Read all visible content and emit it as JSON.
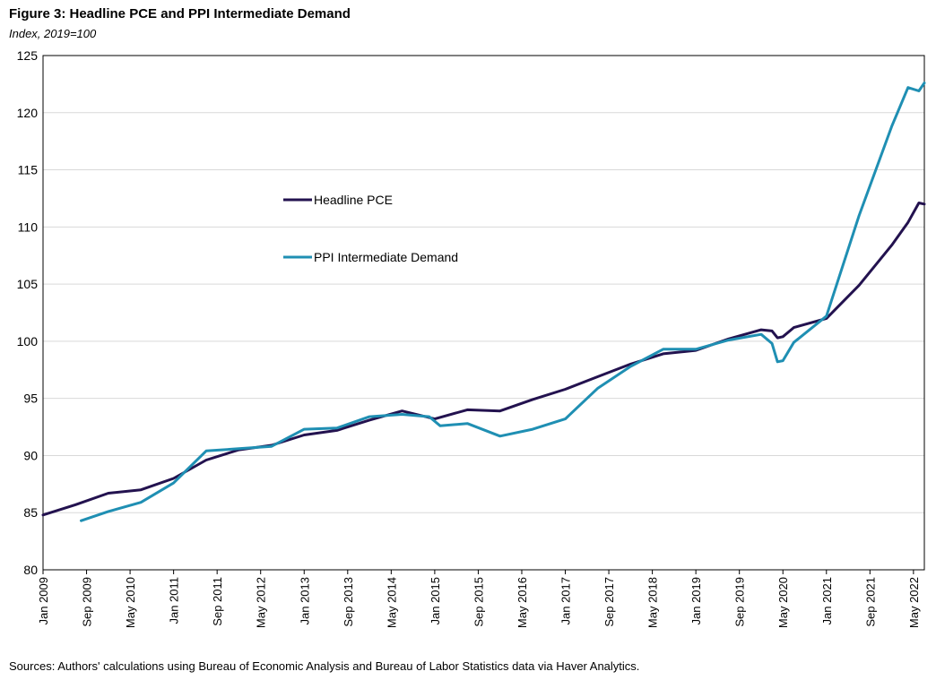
{
  "title": "Figure 3: Headline PCE and PPI Intermediate Demand",
  "subtitle": "Index, 2019=100",
  "source": "Sources: Authors' calculations using Bureau of Economic Analysis and Bureau of Labor Statistics data via Haver Analytics.",
  "chart_data": {
    "type": "line",
    "x_unit": "month",
    "x_start": "Jan 2009",
    "x_end": "Jul 2022",
    "ylim": [
      80,
      125
    ],
    "yticks": [
      80,
      85,
      90,
      95,
      100,
      105,
      110,
      115,
      120,
      125
    ],
    "xticks": [
      "Jan 2009",
      "Sep 2009",
      "May 2010",
      "Jan 2011",
      "Sep 2011",
      "May 2012",
      "Jan 2013",
      "Sep 2013",
      "May 2014",
      "Jan 2015",
      "Sep 2015",
      "May 2016",
      "Jan 2017",
      "Sep 2017",
      "May 2018",
      "Jan 2019",
      "Sep 2019",
      "May 2020",
      "Jan 2021",
      "Sep 2021",
      "May 2022"
    ],
    "grid": "horizontal",
    "legend_placement": "center-left",
    "series": [
      {
        "name": "Headline PCE",
        "color": "#23124f",
        "points": [
          [
            "Jan 2009",
            84.8
          ],
          [
            "Jul 2009",
            85.7
          ],
          [
            "Jan 2010",
            86.7
          ],
          [
            "Jul 2010",
            87.0
          ],
          [
            "Jan 2011",
            88.0
          ],
          [
            "Jul 2011",
            89.6
          ],
          [
            "Jan 2012",
            90.5
          ],
          [
            "Jul 2012",
            90.9
          ],
          [
            "Jan 2013",
            91.8
          ],
          [
            "Jul 2013",
            92.2
          ],
          [
            "Jan 2014",
            93.1
          ],
          [
            "Jul 2014",
            93.9
          ],
          [
            "Jan 2015",
            93.2
          ],
          [
            "Jul 2015",
            94.0
          ],
          [
            "Jan 2016",
            93.9
          ],
          [
            "Jul 2016",
            94.9
          ],
          [
            "Jan 2017",
            95.8
          ],
          [
            "Jul 2017",
            96.9
          ],
          [
            "Jan 2018",
            98.0
          ],
          [
            "Jul 2018",
            98.9
          ],
          [
            "Jan 2019",
            99.2
          ],
          [
            "Jul 2019",
            100.2
          ],
          [
            "Jan 2020",
            101.0
          ],
          [
            "Mar 2020",
            100.9
          ],
          [
            "Apr 2020",
            100.3
          ],
          [
            "May 2020",
            100.4
          ],
          [
            "Jul 2020",
            101.2
          ],
          [
            "Jan 2021",
            102.0
          ],
          [
            "Jul 2021",
            104.9
          ],
          [
            "Jan 2022",
            108.4
          ],
          [
            "Apr 2022",
            110.4
          ],
          [
            "Jun 2022",
            112.1
          ],
          [
            "Jul 2022",
            112.0
          ]
        ]
      },
      {
        "name": "PPI Intermediate Demand",
        "color": "#1f8fb3",
        "points": [
          [
            "Aug 2009",
            84.3
          ],
          [
            "Jan 2010",
            85.1
          ],
          [
            "Jul 2010",
            85.9
          ],
          [
            "Jan 2011",
            87.6
          ],
          [
            "Jul 2011",
            90.4
          ],
          [
            "Jan 2012",
            90.6
          ],
          [
            "Jul 2012",
            90.8
          ],
          [
            "Jan 2013",
            92.3
          ],
          [
            "Jul 2013",
            92.4
          ],
          [
            "Jan 2014",
            93.4
          ],
          [
            "Jul 2014",
            93.6
          ],
          [
            "Dec 2014",
            93.4
          ],
          [
            "Feb 2015",
            92.6
          ],
          [
            "Jul 2015",
            92.8
          ],
          [
            "Jan 2016",
            91.7
          ],
          [
            "Jul 2016",
            92.3
          ],
          [
            "Jan 2017",
            93.2
          ],
          [
            "Jul 2017",
            95.9
          ],
          [
            "Jan 2018",
            97.8
          ],
          [
            "Jul 2018",
            99.3
          ],
          [
            "Jan 2019",
            99.3
          ],
          [
            "Jul 2019",
            100.1
          ],
          [
            "Jan 2020",
            100.6
          ],
          [
            "Mar 2020",
            99.8
          ],
          [
            "Apr 2020",
            98.2
          ],
          [
            "May 2020",
            98.3
          ],
          [
            "Jul 2020",
            99.9
          ],
          [
            "Jan 2021",
            102.2
          ],
          [
            "Jul 2021",
            111.0
          ],
          [
            "Jan 2022",
            118.8
          ],
          [
            "Apr 2022",
            122.2
          ],
          [
            "Jun 2022",
            121.9
          ],
          [
            "Jul 2022",
            122.6
          ]
        ]
      }
    ]
  }
}
